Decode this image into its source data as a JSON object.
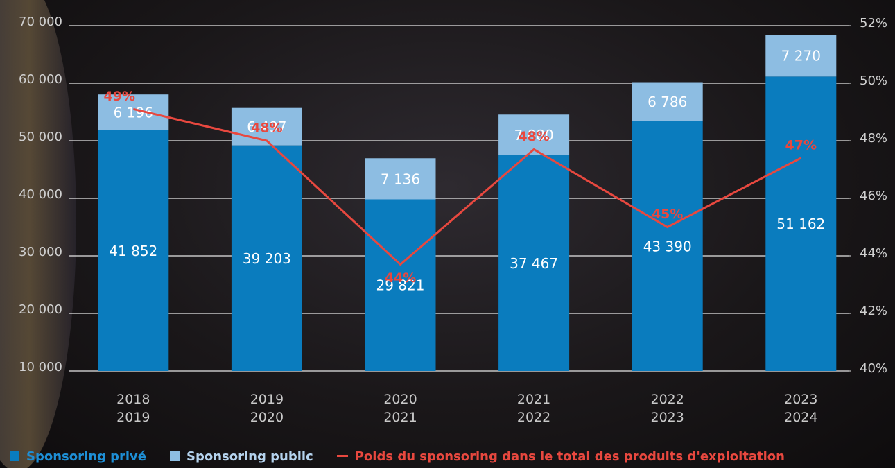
{
  "chart_data": {
    "type": "bar",
    "categories": [
      "2018\n2019",
      "2019\n2020",
      "2020\n2021",
      "2021\n2022",
      "2022\n2023",
      "2023\n2024"
    ],
    "series": [
      {
        "name": "Sponsoring privé",
        "color": "#0a7cbe",
        "values": [
          41852,
          39203,
          29821,
          37467,
          43390,
          51162
        ],
        "value_labels": [
          "41 852",
          "39 203",
          "29 821",
          "37 467",
          "43 390",
          "51 162"
        ]
      },
      {
        "name": "Sponsoring public",
        "color": "#8dbde2",
        "values": [
          6196,
          6497,
          7136,
          7080,
          6786,
          7270
        ],
        "value_labels": [
          "6 196",
          "6 497",
          "7 136",
          "7 080",
          "6 786",
          "7 270"
        ]
      },
      {
        "name": "Poids du sponsoring dans le total des produits d'exploitation",
        "color": "#e8483f",
        "type": "line",
        "axis": "y2",
        "values": [
          49.1,
          48,
          43.7,
          47.7,
          45,
          47.4
        ],
        "value_labels": [
          "49%",
          "48%",
          "44%",
          "48%",
          "45%",
          "47%"
        ]
      }
    ],
    "ylim": [
      10000,
      70000
    ],
    "yticks": [
      {
        "value": 10000,
        "label": "10 000"
      },
      {
        "value": 20000,
        "label": "20 000"
      },
      {
        "value": 30000,
        "label": "30 000"
      },
      {
        "value": 40000,
        "label": "40 000"
      },
      {
        "value": 50000,
        "label": "50 000"
      },
      {
        "value": 60000,
        "label": "60 000"
      },
      {
        "value": 70000,
        "label": "70 000"
      }
    ],
    "y2lim": [
      40,
      52
    ],
    "y2ticks": [
      {
        "value": 40,
        "label": "40%"
      },
      {
        "value": 42,
        "label": "42%"
      },
      {
        "value": 44,
        "label": "44%"
      },
      {
        "value": 46,
        "label": "46%"
      },
      {
        "value": 48,
        "label": "48%"
      },
      {
        "value": 50,
        "label": "50%"
      },
      {
        "value": 52,
        "label": "52%"
      }
    ],
    "grid": true,
    "legend": "bottom"
  }
}
